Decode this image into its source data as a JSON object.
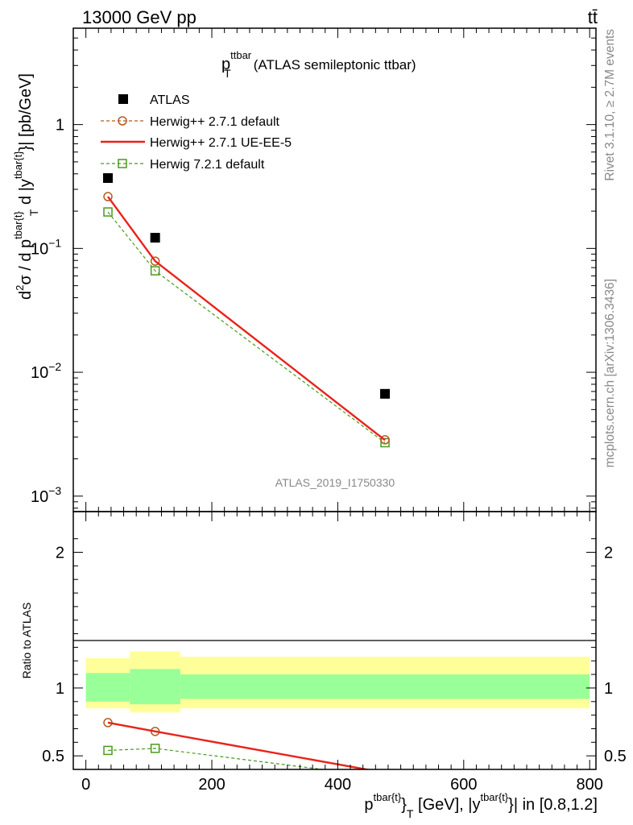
{
  "header": {
    "left": "13000 GeV pp",
    "right": "tt̄"
  },
  "side_labels": {
    "rivet": "Rivet 3.1.10, ≥ 2.7M events",
    "mcplots": "mcplots.cern.ch [arXiv:1306.3436]"
  },
  "analysis_id": "ATLAS_2019_I1750330",
  "chart_data": [
    {
      "type": "line",
      "panel": "main",
      "title": {
        "p": "p",
        "sup": "ttbar",
        "sub": "T",
        "rest": "(ATLAS semileptonic ttbar)"
      },
      "ylabel": "d²σ / d p^{tbar{t}}_T d |y^{tbar{t}}| [pb/GeV]",
      "ylabel_parts": {
        "a": "d",
        "a_sup": "2",
        "b": "σ / d p",
        "b_sup": "tbar{t}",
        "b_sub": "T",
        "c": " d |y",
        "c_sup": "tbar{t}",
        "d": "}| [pb/GeV]"
      },
      "y_scale": "log",
      "xlim": [
        -20,
        810
      ],
      "ylim": [
        0.00075,
        6
      ],
      "y_ticks": [
        {
          "value": 1,
          "label": "1"
        },
        {
          "value": 0.1,
          "label": "10",
          "sup": "−1"
        },
        {
          "value": 0.01,
          "label": "10",
          "sup": "−2"
        },
        {
          "value": 0.001,
          "label": "10",
          "sup": "−3"
        }
      ],
      "legend_position": "top-left",
      "series": [
        {
          "name": "ATLAS",
          "x": [
            35,
            110,
            475
          ],
          "y": [
            0.37,
            0.122,
            0.0067
          ],
          "color": "#000000",
          "marker": "filled-square",
          "line": "none"
        },
        {
          "name": "Herwig++ 2.7.1 default",
          "x": [
            35,
            110,
            475
          ],
          "y": [
            0.262,
            0.079,
            0.00285
          ],
          "color": "#b35a1f",
          "marker": "open-circle",
          "line": "dashed"
        },
        {
          "name": "Herwig++ 2.7.1 UE-EE-5",
          "x": [
            35,
            110,
            475
          ],
          "y": [
            0.262,
            0.079,
            0.00283
          ],
          "color": "#e8231a",
          "marker": "none",
          "line": "solid"
        },
        {
          "name": "Herwig 7.2.1 default",
          "x": [
            35,
            110,
            475
          ],
          "y": [
            0.197,
            0.066,
            0.0027
          ],
          "color": "#4a9a1c",
          "marker": "open-square",
          "line": "dashed"
        }
      ]
    },
    {
      "type": "line",
      "panel": "ratio",
      "ylabel": "Ratio to ATLAS",
      "xlabel": "p^{tbar{t}}_T [GeV], |y^{tbar{t}}| in [0.8,1.2]",
      "xlabel_parts": {
        "a": "p",
        "a_sup": "tbar{t}",
        "a_tail": "}",
        "a_sub": "T",
        "b": " [GeV], |y",
        "b_sup": "tbar{t}",
        "c": "}| in [0.8,1.2]"
      },
      "xlim": [
        -20,
        810
      ],
      "ylim": [
        0.4,
        2.3
      ],
      "x_ticks": [
        0,
        200,
        400,
        600,
        800
      ],
      "y_ticks": [
        0.5,
        1,
        2
      ],
      "uncertainty_bands": [
        {
          "x_range": [
            0,
            70
          ],
          "inner": [
            0.9,
            1.11
          ],
          "outer": [
            0.85,
            1.22
          ]
        },
        {
          "x_range": [
            70,
            150
          ],
          "inner": [
            0.88,
            1.14
          ],
          "outer": [
            0.82,
            1.27
          ]
        },
        {
          "x_range": [
            150,
            800
          ],
          "inner": [
            0.92,
            1.1
          ],
          "outer": [
            0.85,
            1.23
          ]
        }
      ],
      "band_colors": {
        "inner": "#99ff99",
        "outer": "#ffff99"
      },
      "series": [
        {
          "name": "Herwig++ 2.7.1 default",
          "x": [
            35,
            110,
            475
          ],
          "y": [
            0.745,
            0.68,
            0.375
          ],
          "color": "#b35a1f",
          "marker": "open-circle",
          "line": "dashed"
        },
        {
          "name": "Herwig++ 2.7.1 UE-EE-5",
          "x": [
            35,
            110,
            475
          ],
          "y": [
            0.745,
            0.68,
            0.375
          ],
          "color": "#e8231a",
          "marker": "none",
          "line": "solid"
        },
        {
          "name": "Herwig 7.2.1 default",
          "x": [
            35,
            110,
            470
          ],
          "y": [
            0.54,
            0.555,
            0.345
          ],
          "color": "#4a9a1c",
          "marker": "open-square",
          "line": "dashed"
        }
      ]
    }
  ]
}
